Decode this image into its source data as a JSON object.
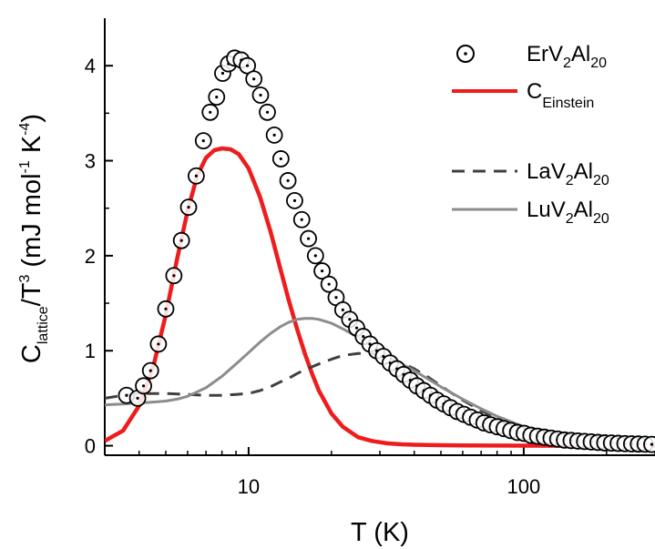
{
  "chart_data": {
    "type": "scatter",
    "x_scale": "log",
    "xlim": [
      3,
      300
    ],
    "ylim": [
      -0.1,
      4.5
    ],
    "xticks": [
      {
        "value": 10,
        "label": "10"
      },
      {
        "value": 100,
        "label": "100"
      }
    ],
    "yticks": [
      {
        "value": 0,
        "label": "0"
      },
      {
        "value": 1,
        "label": "1"
      },
      {
        "value": 2,
        "label": "2"
      },
      {
        "value": 3,
        "label": "3"
      },
      {
        "value": 4,
        "label": "4"
      }
    ],
    "xlabel": "T (K)",
    "ylabel": {
      "main": "C",
      "sub": "lattice",
      "mid": "/T",
      "sup": "3",
      "units": " (mJ mol",
      "u_sup1": "-1",
      "u_mid": " K",
      "u_sup2": "-4",
      "end": ")"
    },
    "legend_position": "top-right",
    "series": [
      {
        "id": "er",
        "name": {
          "a": "ErV",
          "s1": "2",
          "b": "Al",
          "s2": "20"
        },
        "style": "open-circle-dot",
        "color": "#000000",
        "x": [
          3.6,
          3.95,
          4.15,
          4.4,
          4.7,
          5.0,
          5.35,
          5.7,
          6.05,
          6.45,
          6.85,
          7.25,
          7.65,
          8.05,
          8.45,
          8.9,
          9.4,
          9.9,
          10.45,
          11.05,
          11.7,
          12.4,
          13.1,
          13.9,
          14.7,
          15.6,
          16.5,
          17.5,
          18.5,
          19.6,
          20.8,
          22.0,
          23.3,
          24.7,
          26.1,
          27.6,
          29.2,
          30.9,
          32.7,
          34.6,
          36.6,
          38.7,
          40.9,
          43.3,
          45.8,
          48.4,
          51.2,
          54.2,
          57.3,
          60.6,
          64.1,
          67.8,
          71.7,
          75.8,
          80.2,
          84.8,
          89.7,
          94.9,
          100.4,
          106.2,
          112.3,
          118.8,
          125.7,
          132.9,
          140.6,
          148.7,
          157.3,
          166.4,
          176.0,
          186.2,
          197.0,
          208.4,
          220.4,
          233.2,
          246.7,
          261.0,
          276.1,
          292.0
        ],
        "y": [
          0.53,
          0.5,
          0.63,
          0.79,
          1.07,
          1.44,
          1.79,
          2.16,
          2.51,
          2.84,
          3.21,
          3.51,
          3.67,
          3.92,
          4.02,
          4.08,
          4.06,
          4.0,
          3.86,
          3.69,
          3.51,
          3.27,
          3.02,
          2.79,
          2.58,
          2.38,
          2.18,
          2.0,
          1.84,
          1.7,
          1.56,
          1.43,
          1.33,
          1.24,
          1.15,
          1.07,
          1.0,
          0.94,
          0.87,
          0.81,
          0.75,
          0.69,
          0.63,
          0.58,
          0.53,
          0.48,
          0.44,
          0.4,
          0.36,
          0.33,
          0.3,
          0.27,
          0.24,
          0.22,
          0.2,
          0.18,
          0.16,
          0.14,
          0.13,
          0.11,
          0.1,
          0.09,
          0.08,
          0.07,
          0.06,
          0.055,
          0.05,
          0.045,
          0.04,
          0.035,
          0.03,
          0.028,
          0.025,
          0.022,
          0.02,
          0.018,
          0.016,
          0.014
        ]
      },
      {
        "id": "einstein",
        "name": {
          "a": "C",
          "s1": "Einstein",
          "b": "",
          "s2": ""
        },
        "style": "line",
        "color": "#ee1c1c",
        "x": [
          3.0,
          3.5,
          4.0,
          4.5,
          5.0,
          5.5,
          6.0,
          6.5,
          7.0,
          7.5,
          8.0,
          8.6,
          9.2,
          10.0,
          11.0,
          12.0,
          13.0,
          14.0,
          15.0,
          16.0,
          17.0,
          18.0,
          20.0,
          22.0,
          25.0,
          28.0,
          32.0,
          36.0,
          40.0,
          50.0,
          60.0,
          80.0,
          100.0,
          150.0,
          200.0,
          300.0
        ],
        "y": [
          0.05,
          0.16,
          0.42,
          0.83,
          1.38,
          1.97,
          2.47,
          2.84,
          3.03,
          3.11,
          3.13,
          3.12,
          3.07,
          2.92,
          2.62,
          2.26,
          1.88,
          1.53,
          1.23,
          0.97,
          0.76,
          0.58,
          0.34,
          0.2,
          0.09,
          0.05,
          0.025,
          0.015,
          0.01,
          0.005,
          0.003,
          0.002,
          0.001,
          0.0,
          0.0,
          0.0
        ]
      },
      {
        "id": "la",
        "name": {
          "a": "LaV",
          "s1": "2",
          "b": "Al",
          "s2": "20"
        },
        "style": "dashed",
        "color": "#404040",
        "x": [
          3.0,
          3.5,
          4.0,
          5.0,
          6.0,
          7.0,
          8.0,
          9.0,
          10.0,
          11.0,
          12.0,
          13.0,
          14.0,
          15.0,
          16.0,
          18.0,
          20.0,
          22.0,
          25.0,
          28.0,
          32.0,
          36.0,
          40.0,
          45.0,
          50.0,
          55.0,
          60.0,
          70.0,
          80.0,
          100.0,
          120.0,
          150.0,
          200.0,
          250.0,
          300.0
        ],
        "y": [
          0.5,
          0.53,
          0.55,
          0.55,
          0.54,
          0.53,
          0.53,
          0.54,
          0.55,
          0.58,
          0.62,
          0.67,
          0.71,
          0.76,
          0.8,
          0.86,
          0.91,
          0.95,
          0.97,
          0.97,
          0.93,
          0.87,
          0.81,
          0.72,
          0.63,
          0.55,
          0.48,
          0.37,
          0.29,
          0.19,
          0.13,
          0.08,
          0.05,
          0.03,
          0.02
        ]
      },
      {
        "id": "lu",
        "name": {
          "a": "LuV",
          "s1": "2",
          "b": "Al",
          "s2": "20"
        },
        "style": "line",
        "color": "#8c8c8c",
        "x": [
          3.0,
          3.5,
          4.0,
          4.5,
          5.0,
          5.5,
          6.0,
          7.0,
          8.0,
          9.0,
          10.0,
          11.0,
          12.0,
          13.0,
          14.0,
          15.0,
          16.0,
          17.0,
          18.0,
          19.0,
          20.0,
          22.0,
          25.0,
          28.0,
          32.0,
          36.0,
          40.0,
          45.0,
          50.0,
          60.0,
          70.0,
          80.0,
          100.0,
          120.0,
          150.0,
          200.0,
          250.0,
          300.0
        ],
        "y": [
          0.43,
          0.44,
          0.45,
          0.46,
          0.47,
          0.49,
          0.52,
          0.61,
          0.73,
          0.86,
          0.98,
          1.09,
          1.18,
          1.25,
          1.3,
          1.33,
          1.34,
          1.34,
          1.33,
          1.31,
          1.29,
          1.23,
          1.14,
          1.05,
          0.95,
          0.86,
          0.79,
          0.7,
          0.62,
          0.49,
          0.39,
          0.31,
          0.2,
          0.14,
          0.08,
          0.04,
          0.02,
          0.015
        ]
      }
    ]
  }
}
